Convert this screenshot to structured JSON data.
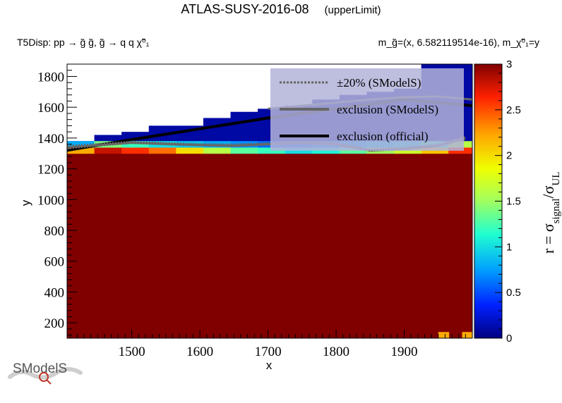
{
  "header": {
    "title": "ATLAS-SUSY-2016-08",
    "title_tag": "(upperLimit)",
    "subtitle_left": "T5Disp: pp  → g̃ g̃, g̃  → q q χ̃⁰₁",
    "subtitle_right": "m_g̃=(x, 6.582119514e-16), m_χ̃⁰₁=y"
  },
  "logo": {
    "text": "SModelS"
  },
  "colors": {
    "excluded": "#800000",
    "official_line": "#000000",
    "smodels_line": "#666666",
    "band_line": "#666666",
    "legend_bg": "#b3b3d9"
  },
  "chart_data": {
    "type": "heatmap",
    "xlabel": "x",
    "ylabel": "y",
    "zlabel": "r = σ_signal/σ_UL",
    "xlim": [
      1405,
      2000
    ],
    "ylim": [
      100,
      1880
    ],
    "zlim": [
      0,
      3
    ],
    "x_ticks": [
      "1500",
      "1600",
      "1700",
      "1800",
      "1900"
    ],
    "y_ticks": [
      "200",
      "400",
      "600",
      "800",
      "1000",
      "1200",
      "1400",
      "1600",
      "1800"
    ],
    "z_ticks": [
      "0",
      "0.5",
      "1",
      "1.5",
      "2",
      "2.5",
      "3"
    ],
    "legend_position": "top-right",
    "legend": [
      {
        "label": "±20% (SModelS)",
        "style": "dotted"
      },
      {
        "label": "exclusion (SModelS)",
        "style": "solid-grey"
      },
      {
        "label": "exclusion (official)",
        "style": "solid-black"
      }
    ],
    "bulk_region": {
      "x": [
        1405,
        2000
      ],
      "y": [
        100,
        1300
      ],
      "r": 3
    },
    "upper_edge_cells": [
      {
        "x0": 1405,
        "x1": 1445,
        "y0": 1300,
        "y1": 1380,
        "r": 0.1
      },
      {
        "x0": 1445,
        "x1": 1485,
        "y0": 1300,
        "y1": 1420,
        "r": 0.1
      },
      {
        "x0": 1485,
        "x1": 1525,
        "y0": 1300,
        "y1": 1440,
        "r": 0.1
      },
      {
        "x0": 1525,
        "x1": 1565,
        "y0": 1300,
        "y1": 1480,
        "r": 0.1
      },
      {
        "x0": 1565,
        "x1": 1605,
        "y0": 1300,
        "y1": 1480,
        "r": 0.1
      },
      {
        "x0": 1605,
        "x1": 1645,
        "y0": 1300,
        "y1": 1530,
        "r": 0.1
      },
      {
        "x0": 1645,
        "x1": 1685,
        "y0": 1300,
        "y1": 1570,
        "r": 0.1
      },
      {
        "x0": 1685,
        "x1": 1725,
        "y0": 1300,
        "y1": 1590,
        "r": 0.1
      },
      {
        "x0": 1725,
        "x1": 1765,
        "y0": 1300,
        "y1": 1610,
        "r": 0.1
      },
      {
        "x0": 1765,
        "x1": 1805,
        "y0": 1300,
        "y1": 1650,
        "r": 0.1
      },
      {
        "x0": 1805,
        "x1": 1845,
        "y0": 1300,
        "y1": 1680,
        "r": 0.1
      },
      {
        "x0": 1845,
        "x1": 1885,
        "y0": 1300,
        "y1": 1700,
        "r": 0.1
      },
      {
        "x0": 1885,
        "x1": 1925,
        "y0": 1300,
        "y1": 1720,
        "r": 0.1
      },
      {
        "x0": 1925,
        "x1": 1965,
        "y0": 1300,
        "y1": 1880,
        "r": 0.1
      },
      {
        "x0": 1965,
        "x1": 2000,
        "y0": 1300,
        "y1": 1880,
        "r": 0.1
      }
    ],
    "transition_cells": [
      {
        "x0": 1405,
        "x1": 1445,
        "y0": 1300,
        "y1": 1340,
        "r": 2.2
      },
      {
        "x0": 1445,
        "x1": 1485,
        "y0": 1300,
        "y1": 1340,
        "r": 2.8
      },
      {
        "x0": 1485,
        "x1": 1525,
        "y0": 1300,
        "y1": 1340,
        "r": 2.6
      },
      {
        "x0": 1525,
        "x1": 1565,
        "y0": 1300,
        "y1": 1340,
        "r": 2.4
      },
      {
        "x0": 1565,
        "x1": 1605,
        "y0": 1300,
        "y1": 1340,
        "r": 2.0
      },
      {
        "x0": 1605,
        "x1": 1645,
        "y0": 1300,
        "y1": 1340,
        "r": 1.6
      },
      {
        "x0": 1645,
        "x1": 1685,
        "y0": 1300,
        "y1": 1340,
        "r": 1.3
      },
      {
        "x0": 1685,
        "x1": 1725,
        "y0": 1300,
        "y1": 1340,
        "r": 1.2
      },
      {
        "x0": 1725,
        "x1": 1765,
        "y0": 1300,
        "y1": 1340,
        "r": 1.0
      },
      {
        "x0": 1765,
        "x1": 1805,
        "y0": 1300,
        "y1": 1340,
        "r": 1.1
      },
      {
        "x0": 1805,
        "x1": 1845,
        "y0": 1300,
        "y1": 1340,
        "r": 1.3
      },
      {
        "x0": 1845,
        "x1": 1885,
        "y0": 1300,
        "y1": 1340,
        "r": 1.5
      },
      {
        "x0": 1885,
        "x1": 1925,
        "y0": 1300,
        "y1": 1340,
        "r": 1.7
      },
      {
        "x0": 1925,
        "x1": 1965,
        "y0": 1300,
        "y1": 1340,
        "r": 2.1
      },
      {
        "x0": 1965,
        "x1": 2000,
        "y0": 1300,
        "y1": 1340,
        "r": 2.6
      },
      {
        "x0": 1405,
        "x1": 1445,
        "y0": 1340,
        "y1": 1380,
        "r": 0.8
      },
      {
        "x0": 1445,
        "x1": 1485,
        "y0": 1340,
        "y1": 1380,
        "r": 1.4
      },
      {
        "x0": 1485,
        "x1": 1525,
        "y0": 1340,
        "y1": 1380,
        "r": 1.2
      },
      {
        "x0": 1525,
        "x1": 1565,
        "y0": 1340,
        "y1": 1380,
        "r": 1.0
      },
      {
        "x0": 1565,
        "x1": 1605,
        "y0": 1340,
        "y1": 1380,
        "r": 0.9
      },
      {
        "x0": 1605,
        "x1": 1645,
        "y0": 1340,
        "y1": 1380,
        "r": 0.8
      },
      {
        "x0": 1645,
        "x1": 1685,
        "y0": 1340,
        "y1": 1380,
        "r": 0.7
      },
      {
        "x0": 1685,
        "x1": 1725,
        "y0": 1340,
        "y1": 1380,
        "r": 0.6
      },
      {
        "x0": 1725,
        "x1": 1765,
        "y0": 1340,
        "y1": 1380,
        "r": 0.6
      },
      {
        "x0": 1765,
        "x1": 1805,
        "y0": 1340,
        "y1": 1380,
        "r": 0.7
      },
      {
        "x0": 1805,
        "x1": 1845,
        "y0": 1340,
        "y1": 1380,
        "r": 0.8
      },
      {
        "x0": 1845,
        "x1": 1885,
        "y0": 1340,
        "y1": 1380,
        "r": 0.9
      },
      {
        "x0": 1885,
        "x1": 1925,
        "y0": 1340,
        "y1": 1380,
        "r": 1.0
      },
      {
        "x0": 1925,
        "x1": 1965,
        "y0": 1340,
        "y1": 1380,
        "r": 1.2
      },
      {
        "x0": 1965,
        "x1": 2000,
        "y0": 1340,
        "y1": 1380,
        "r": 1.6
      }
    ],
    "special_cells": [
      {
        "x0": 1950,
        "x1": 1958,
        "y0": 100,
        "y1": 140,
        "r": 2.2
      },
      {
        "x0": 1958,
        "x1": 1966,
        "y0": 100,
        "y1": 140,
        "r": 2.2
      },
      {
        "x0": 1985,
        "x1": 2000,
        "y0": 100,
        "y1": 140,
        "r": 2.2
      }
    ],
    "series": [
      {
        "name": "exclusion (official)",
        "x": [
          1405,
          1500,
          1600,
          1700,
          1800,
          1900,
          2000
        ],
        "y": [
          1320,
          1390,
          1460,
          1530,
          1590,
          1650,
          1610
        ]
      },
      {
        "name": "exclusion (SModelS)",
        "x": [
          1405,
          1440,
          1500,
          1560,
          1600,
          1650,
          1700,
          1750,
          1800,
          1850,
          1900,
          1950,
          1990
        ],
        "y": [
          1340,
          1350,
          1370,
          1360,
          1355,
          1350,
          1360,
          1370,
          1360,
          1320,
          1330,
          1350,
          1400
        ]
      },
      {
        "name": "±20% (SModelS)",
        "x": [
          1405,
          1440,
          1500,
          1560,
          1600,
          1650,
          1700,
          1750,
          1800,
          1850,
          1900,
          1950,
          1990
        ],
        "y": [
          1330,
          1345,
          1365,
          1355,
          1350,
          1345,
          1355,
          1365,
          1355,
          1315,
          1325,
          1345,
          1390
        ]
      },
      {
        "name": "±20% (SModelS)",
        "x": [
          1405,
          1440,
          1500,
          1560,
          1600,
          1650,
          1700,
          1750,
          1800,
          1850,
          1900,
          1950,
          1990
        ],
        "y": [
          1350,
          1360,
          1378,
          1368,
          1362,
          1360,
          1368,
          1378,
          1368,
          1328,
          1338,
          1360,
          1412
        ]
      },
      {
        "name": "exclusion (SModelS)",
        "x": [
          1700,
          1750,
          1800,
          1850,
          1900,
          1950,
          2000
        ],
        "y": [
          1590,
          1610,
          1630,
          1650,
          1665,
          1670,
          1650
        ]
      }
    ]
  }
}
